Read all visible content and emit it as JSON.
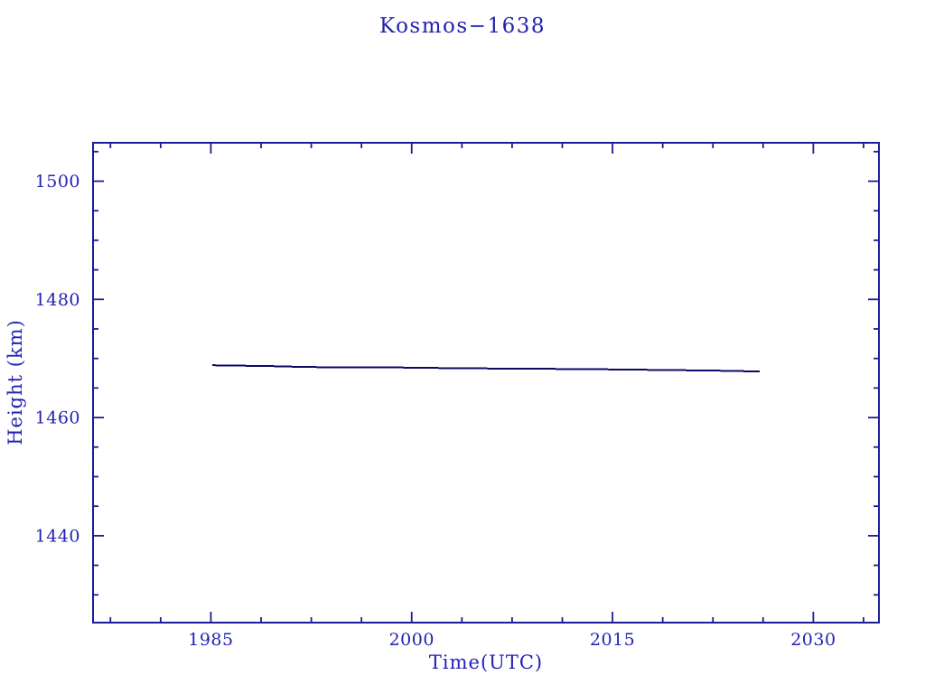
{
  "page": {
    "background": "#ffffff"
  },
  "colors": {
    "text_blue": "#2222b2",
    "axis_blue": "#1c1c96",
    "line_navy": "#0a0a64"
  },
  "chart_data": {
    "type": "line",
    "title": "Kosmos−1638",
    "xlabel": "Time(UTC)",
    "ylabel": "Height (km)",
    "xlim": [
      1976.2,
      2034.9
    ],
    "ylim": [
      1425.3,
      1506.5
    ],
    "xticks": [
      1985,
      2000,
      2015,
      2030
    ],
    "yticks": [
      1440,
      1460,
      1480,
      1500
    ],
    "x_minor_step": 3.75,
    "y_minor_step": 5,
    "grid": false,
    "legend": "none",
    "series": [
      {
        "name": "height",
        "x": [
          1985.1,
          1989.6,
          1992.2,
          2000.0,
          2003.1,
          2013.2,
          2022.5,
          2026.0
        ],
        "y": [
          1468.85,
          1468.7,
          1468.55,
          1468.45,
          1468.35,
          1468.2,
          1467.95,
          1467.8
        ]
      }
    ]
  }
}
